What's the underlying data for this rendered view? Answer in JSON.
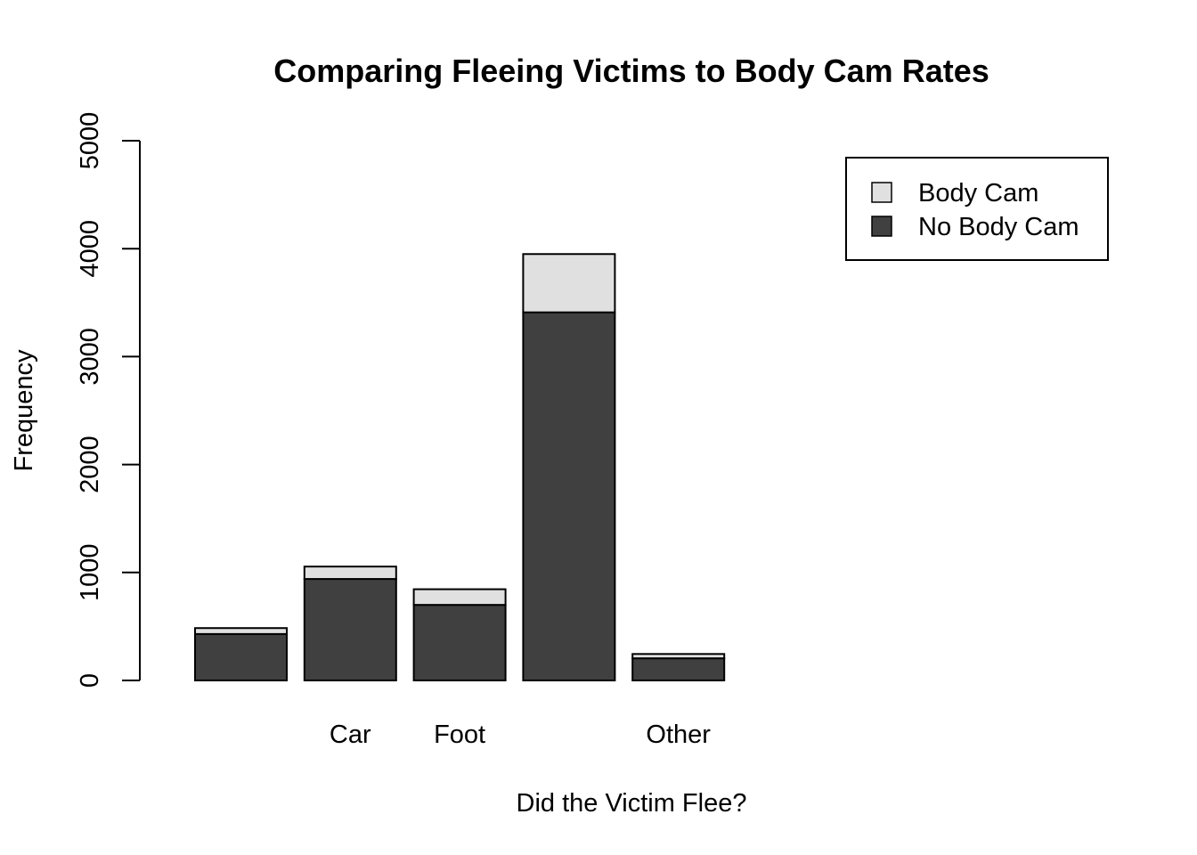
{
  "chart_data": {
    "type": "bar",
    "stacked": true,
    "title": "Comparing Fleeing Victims to Body Cam Rates",
    "xlabel": "Did the Victim Flee?",
    "ylabel": "Frequency",
    "categories": [
      "",
      "Car",
      "Foot",
      "",
      "Other"
    ],
    "ylim": [
      0,
      5000
    ],
    "yticks": [
      0,
      1000,
      2000,
      3000,
      4000,
      5000
    ],
    "series": [
      {
        "name": "No Body Cam",
        "color": "#404040",
        "values": [
          430,
          940,
          700,
          3410,
          205
        ]
      },
      {
        "name": "Body Cam",
        "color": "#e0e0e0",
        "values": [
          55,
          115,
          145,
          540,
          40
        ]
      }
    ],
    "legend": {
      "position": "top-right",
      "items": [
        {
          "label": "Body Cam",
          "color": "#e0e0e0"
        },
        {
          "label": "No Body Cam",
          "color": "#404040"
        }
      ]
    },
    "grid": false
  }
}
